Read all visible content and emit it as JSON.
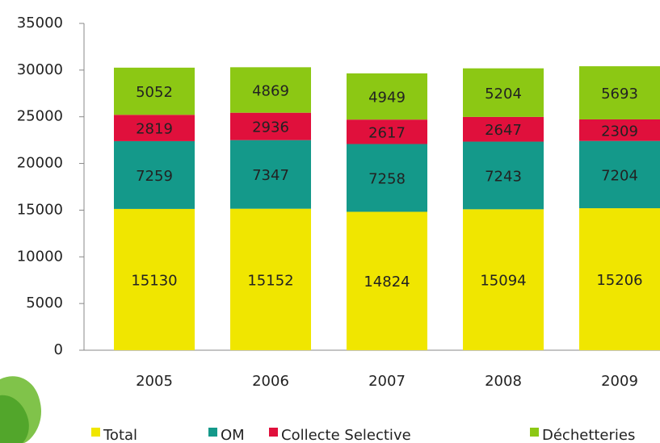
{
  "chart_data": {
    "type": "stacked_bar",
    "categories": [
      "2005",
      "2006",
      "2007",
      "2008",
      "2009"
    ],
    "series": [
      {
        "name": "Total",
        "color": "#f0e600",
        "values": [
          15130,
          15152,
          14824,
          15094,
          15206
        ]
      },
      {
        "name": "OM",
        "color": "#14998a",
        "values": [
          7259,
          7347,
          7258,
          7243,
          7204
        ]
      },
      {
        "name": "Collecte Selective",
        "color": "#e0103c",
        "values": [
          2819,
          2936,
          2617,
          2647,
          2309
        ]
      },
      {
        "name": "Déchetteries",
        "color": "#8cc814",
        "values": [
          5052,
          4869,
          4949,
          5204,
          5693
        ]
      }
    ],
    "ylim": [
      0,
      35000
    ],
    "yticks": [
      0,
      5000,
      10000,
      15000,
      20000,
      25000,
      30000,
      35000
    ],
    "grid": false,
    "legend": "bottom"
  }
}
